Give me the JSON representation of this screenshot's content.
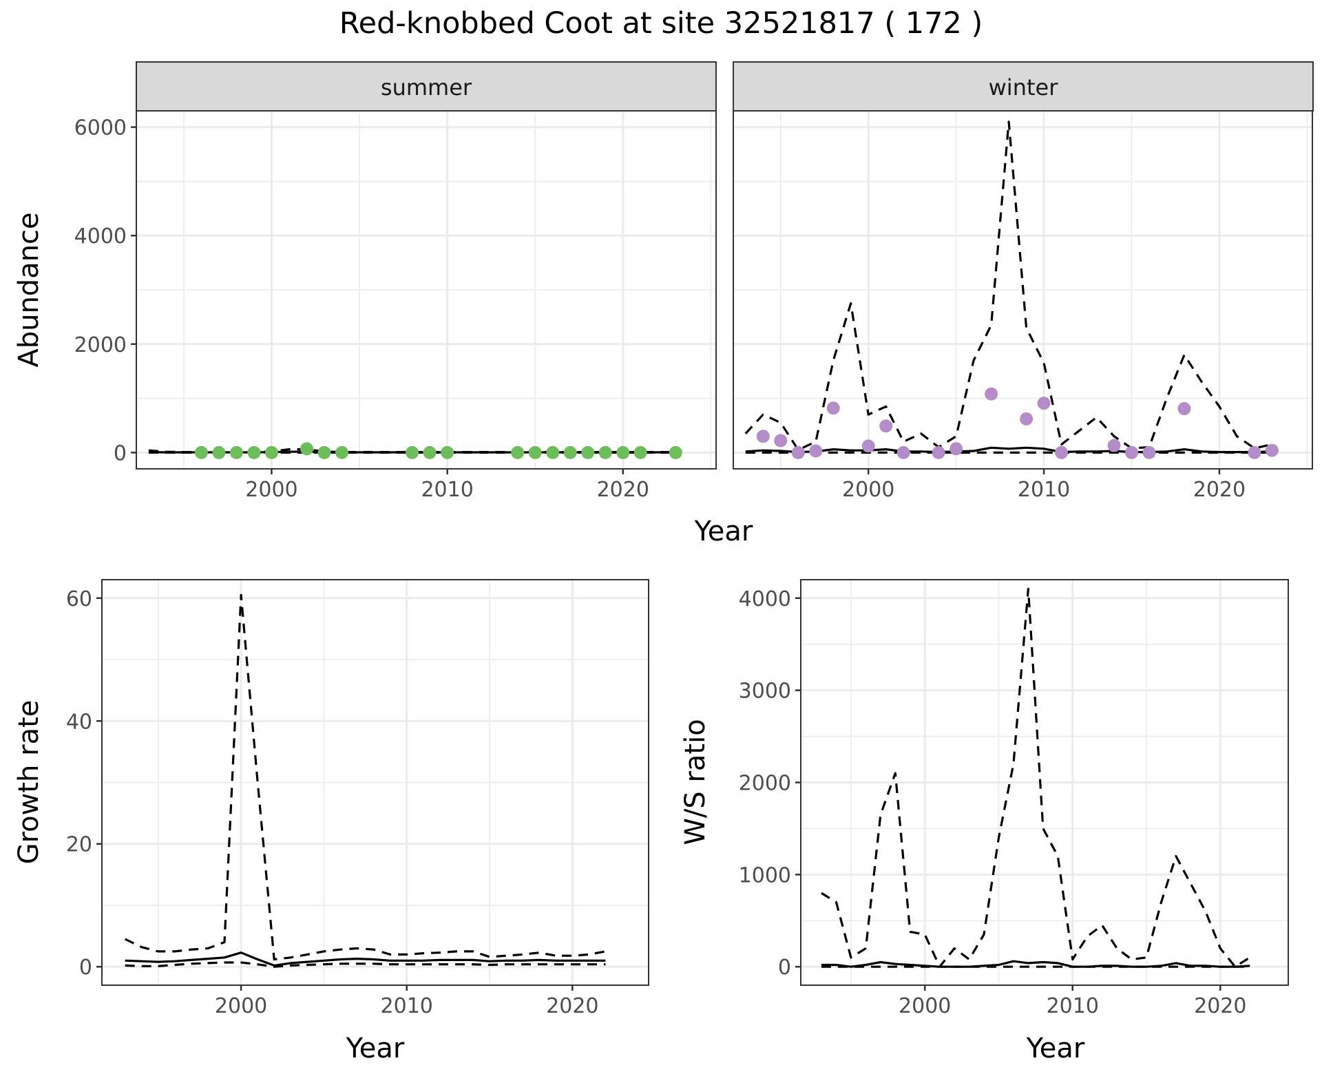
{
  "chart_data": {
    "title": "Red-knobbed Coot at site 32521817 ( 172 )",
    "panels": [
      {
        "id": "abundance-summer",
        "type": "line",
        "strip": "summer",
        "ylabel": "Abundance",
        "xlabel": "Year",
        "xlim": [
          1992.3,
          2025.3
        ],
        "ylim": [
          -300,
          6300
        ],
        "xticks": [
          2000,
          2010,
          2020
        ],
        "yticks": [
          0,
          2000,
          4000,
          6000
        ],
        "grid": true,
        "series": [
          {
            "name": "estimate",
            "style": "solid",
            "x": [
              1993,
              1994,
              1995,
              1996,
              1997,
              1998,
              1999,
              2000,
              2001,
              2002,
              2003,
              2004,
              2005,
              2006,
              2007,
              2008,
              2009,
              2010,
              2011,
              2012,
              2013,
              2014,
              2015,
              2016,
              2017,
              2018,
              2019,
              2020,
              2021,
              2022,
              2023
            ],
            "y": [
              10,
              5,
              5,
              5,
              5,
              5,
              5,
              8,
              15,
              20,
              10,
              5,
              5,
              5,
              5,
              5,
              5,
              5,
              5,
              5,
              5,
              5,
              5,
              5,
              5,
              5,
              5,
              5,
              5,
              5,
              5
            ]
          },
          {
            "name": "upper",
            "style": "dashed",
            "x": [
              1993,
              1994,
              1995,
              1996,
              1997,
              1998,
              1999,
              2000,
              2001,
              2002,
              2003,
              2004,
              2005,
              2006,
              2007,
              2008,
              2009,
              2010,
              2011,
              2012,
              2013,
              2014,
              2015,
              2016,
              2017,
              2018,
              2019,
              2020,
              2021,
              2022,
              2023
            ],
            "y": [
              40,
              15,
              10,
              10,
              10,
              10,
              10,
              20,
              60,
              60,
              20,
              10,
              10,
              10,
              10,
              10,
              10,
              10,
              10,
              10,
              10,
              10,
              10,
              10,
              10,
              10,
              10,
              10,
              10,
              10,
              10
            ]
          },
          {
            "name": "lower",
            "style": "dashed",
            "x": [
              1993,
              2023
            ],
            "y": [
              0,
              0
            ]
          }
        ],
        "points": {
          "name": "observed",
          "color": "#6dbd5b",
          "x": [
            1996,
            1997,
            1998,
            1999,
            2000,
            2002,
            2003,
            2004,
            2008,
            2009,
            2010,
            2014,
            2015,
            2016,
            2017,
            2018,
            2019,
            2020,
            2021,
            2023
          ],
          "y": [
            0,
            0,
            0,
            0,
            0,
            70,
            0,
            0,
            0,
            0,
            0,
            0,
            0,
            0,
            0,
            0,
            0,
            0,
            0,
            0
          ]
        }
      },
      {
        "id": "abundance-winter",
        "type": "line",
        "strip": "winter",
        "ylabel": "",
        "xlabel": "Year",
        "xlim": [
          1992.3,
          2025.3
        ],
        "ylim": [
          -300,
          6300
        ],
        "xticks": [
          2000,
          2010,
          2020
        ],
        "yticks": [
          0,
          2000,
          4000,
          6000
        ],
        "grid": true,
        "series": [
          {
            "name": "estimate",
            "style": "solid",
            "x": [
              1993,
              1994,
              1995,
              1996,
              1997,
              1998,
              1999,
              2000,
              2001,
              2002,
              2003,
              2004,
              2005,
              2006,
              2007,
              2008,
              2009,
              2010,
              2011,
              2012,
              2013,
              2014,
              2015,
              2016,
              2017,
              2018,
              2019,
              2020,
              2021,
              2022,
              2023
            ],
            "y": [
              20,
              40,
              30,
              10,
              20,
              60,
              40,
              40,
              60,
              20,
              20,
              10,
              20,
              30,
              90,
              70,
              90,
              70,
              10,
              20,
              20,
              30,
              10,
              10,
              20,
              60,
              20,
              10,
              10,
              10,
              20
            ]
          },
          {
            "name": "upper",
            "style": "dashed",
            "x": [
              1993,
              1994,
              1995,
              1996,
              1997,
              1998,
              1999,
              2000,
              2001,
              2002,
              2003,
              2004,
              2005,
              2006,
              2007,
              2008,
              2009,
              2010,
              2011,
              2012,
              2013,
              2014,
              2015,
              2016,
              2017,
              2018,
              2019,
              2020,
              2021,
              2022,
              2023
            ],
            "y": [
              350,
              700,
              550,
              50,
              200,
              1700,
              2750,
              700,
              850,
              200,
              350,
              100,
              300,
              1700,
              2350,
              6100,
              2300,
              1650,
              150,
              400,
              650,
              300,
              80,
              100,
              1000,
              1800,
              1300,
              850,
              300,
              80,
              150
            ]
          },
          {
            "name": "lower",
            "style": "dashed",
            "x": [
              1993,
              2023
            ],
            "y": [
              0,
              0
            ]
          }
        ],
        "points": {
          "name": "observed",
          "color": "#b48cc8",
          "x": [
            1994,
            1995,
            1996,
            1997,
            1998,
            2000,
            2001,
            2002,
            2004,
            2005,
            2007,
            2009,
            2010,
            2011,
            2014,
            2015,
            2016,
            2018,
            2022,
            2023
          ],
          "y": [
            300,
            220,
            0,
            30,
            820,
            120,
            490,
            0,
            0,
            70,
            1080,
            620,
            910,
            0,
            130,
            0,
            0,
            810,
            0,
            40
          ]
        }
      },
      {
        "id": "growth-rate",
        "type": "line",
        "ylabel": "Growth rate",
        "xlabel": "Year",
        "xlim": [
          1991.6,
          2024.6
        ],
        "ylim": [
          -3,
          63
        ],
        "xticks": [
          2000,
          2010,
          2020
        ],
        "yticks": [
          0,
          20,
          40,
          60
        ],
        "grid": true,
        "series": [
          {
            "name": "estimate",
            "style": "solid",
            "x": [
              1993,
              1994,
              1995,
              1996,
              1997,
              1998,
              1999,
              2000,
              2001,
              2002,
              2003,
              2004,
              2005,
              2006,
              2007,
              2008,
              2009,
              2010,
              2011,
              2012,
              2013,
              2014,
              2015,
              2016,
              2017,
              2018,
              2019,
              2020,
              2021,
              2022
            ],
            "y": [
              1.0,
              0.9,
              0.8,
              0.9,
              1.1,
              1.3,
              1.5,
              2.3,
              1.2,
              0.2,
              0.6,
              0.8,
              1.0,
              1.2,
              1.3,
              1.2,
              1.0,
              1.0,
              1.0,
              1.1,
              1.1,
              1.1,
              0.9,
              1.0,
              1.0,
              1.1,
              1.0,
              1.0,
              1.0,
              1.0
            ]
          },
          {
            "name": "upper",
            "style": "dashed",
            "x": [
              1993,
              1994,
              1995,
              1996,
              1997,
              1998,
              1999,
              2000,
              2001,
              2002,
              2003,
              2004,
              2005,
              2006,
              2007,
              2008,
              2009,
              2010,
              2011,
              2012,
              2013,
              2014,
              2015,
              2016,
              2017,
              2018,
              2019,
              2020,
              2021,
              2022
            ],
            "y": [
              4.5,
              3.2,
              2.5,
              2.5,
              2.8,
              3.0,
              4.0,
              60.5,
              30,
              1.2,
              1.5,
              2.0,
              2.5,
              2.8,
              3.0,
              2.8,
              2.0,
              2.0,
              2.2,
              2.3,
              2.5,
              2.5,
              1.6,
              1.8,
              2.0,
              2.3,
              1.8,
              1.8,
              2.0,
              2.5
            ]
          },
          {
            "name": "lower",
            "style": "dashed",
            "x": [
              1993,
              1994,
              1995,
              1996,
              1997,
              1998,
              1999,
              2000,
              2001,
              2002,
              2003,
              2004,
              2005,
              2006,
              2007,
              2008,
              2009,
              2010,
              2011,
              2012,
              2013,
              2014,
              2015,
              2016,
              2017,
              2018,
              2019,
              2020,
              2021,
              2022
            ],
            "y": [
              0.2,
              0.1,
              0.1,
              0.3,
              0.5,
              0.6,
              0.7,
              0.7,
              0.4,
              0.0,
              0.2,
              0.3,
              0.4,
              0.5,
              0.5,
              0.5,
              0.4,
              0.4,
              0.4,
              0.4,
              0.4,
              0.4,
              0.3,
              0.4,
              0.4,
              0.4,
              0.4,
              0.4,
              0.4,
              0.4
            ]
          }
        ]
      },
      {
        "id": "ws-ratio",
        "type": "line",
        "ylabel": "W/S ratio",
        "xlabel": "Year",
        "xlim": [
          1991.6,
          2024.6
        ],
        "ylim": [
          -200,
          4200
        ],
        "xticks": [
          2000,
          2010,
          2020
        ],
        "yticks": [
          0,
          1000,
          2000,
          3000,
          4000
        ],
        "grid": true,
        "series": [
          {
            "name": "estimate",
            "style": "solid",
            "x": [
              1993,
              1994,
              1995,
              1996,
              1997,
              1998,
              1999,
              2000,
              2001,
              2002,
              2003,
              2004,
              2005,
              2006,
              2007,
              2008,
              2009,
              2010,
              2011,
              2012,
              2013,
              2014,
              2015,
              2016,
              2017,
              2018,
              2019,
              2020,
              2021,
              2022
            ],
            "y": [
              20,
              20,
              0,
              20,
              50,
              30,
              20,
              10,
              0,
              0,
              0,
              10,
              20,
              60,
              40,
              50,
              40,
              0,
              0,
              10,
              10,
              0,
              0,
              10,
              40,
              10,
              10,
              0,
              0,
              10
            ]
          },
          {
            "name": "upper",
            "style": "dashed",
            "x": [
              1993,
              1994,
              1995,
              1996,
              1997,
              1998,
              1999,
              2000,
              2001,
              2002,
              2003,
              2004,
              2005,
              2006,
              2007,
              2008,
              2009,
              2010,
              2011,
              2012,
              2013,
              2014,
              2015,
              2016,
              2017,
              2018,
              2019,
              2020,
              2021,
              2022
            ],
            "y": [
              800,
              700,
              100,
              200,
              1650,
              2100,
              380,
              350,
              0,
              200,
              80,
              350,
              1400,
              2200,
              4100,
              1500,
              1200,
              80,
              330,
              450,
              200,
              80,
              100,
              700,
              1200,
              900,
              600,
              200,
              0,
              100
            ]
          },
          {
            "name": "lower",
            "style": "dashed",
            "x": [
              1993,
              2022
            ],
            "y": [
              0,
              0
            ]
          }
        ]
      }
    ]
  }
}
